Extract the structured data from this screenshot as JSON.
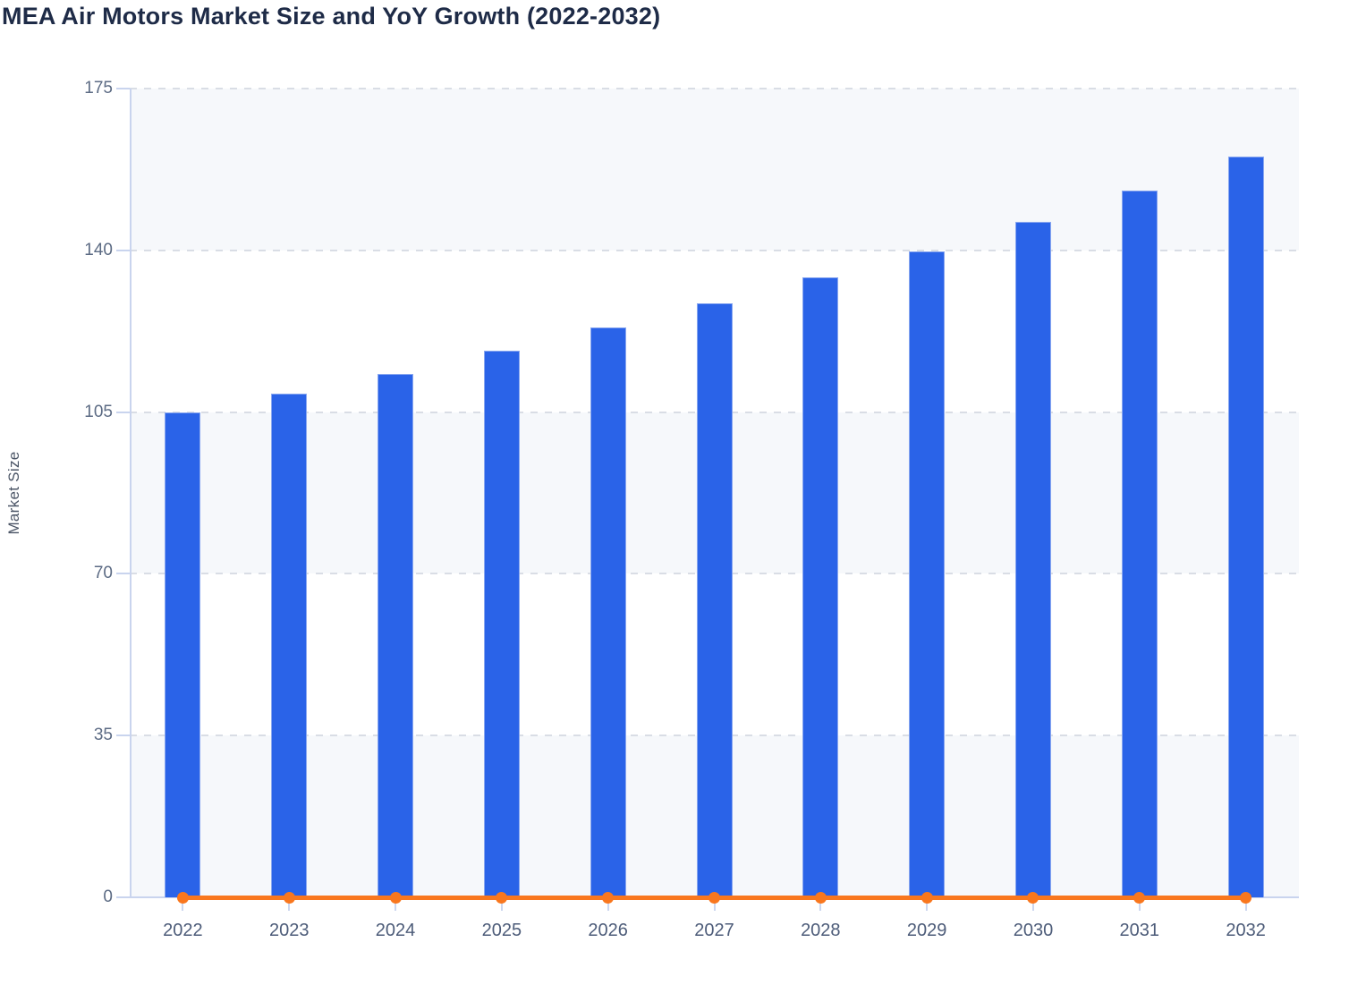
{
  "chart_data": {
    "type": "bar",
    "title": "MEA Air Motors Market Size and YoY Growth (2022-2032)",
    "ylabel": "Market Size",
    "xlabel": "",
    "categories": [
      "2022",
      "2023",
      "2024",
      "2025",
      "2026",
      "2027",
      "2028",
      "2029",
      "2030",
      "2031",
      "2032"
    ],
    "series": [
      {
        "name": "Market Size",
        "type": "bar",
        "color": "#2a63e8",
        "values": [
          105,
          109,
          113.3,
          118.2,
          123.4,
          128.6,
          134.1,
          139.8,
          146.2,
          153,
          160.3
        ]
      },
      {
        "name": "YoY Growth",
        "type": "line",
        "color": "#f9771e",
        "values": [
          0,
          0,
          0,
          0,
          0,
          0,
          0,
          0,
          0,
          0,
          0
        ],
        "note": "line renders flat at ~0 on the shared Market Size axis, with a circular marker at each year"
      }
    ],
    "ylim": [
      0,
      175
    ],
    "yticks": [
      0,
      35,
      70,
      105,
      140,
      175
    ],
    "grid": "dashed horizontal gridlines; alternating light band shading between gridline rows",
    "legend": "none"
  }
}
